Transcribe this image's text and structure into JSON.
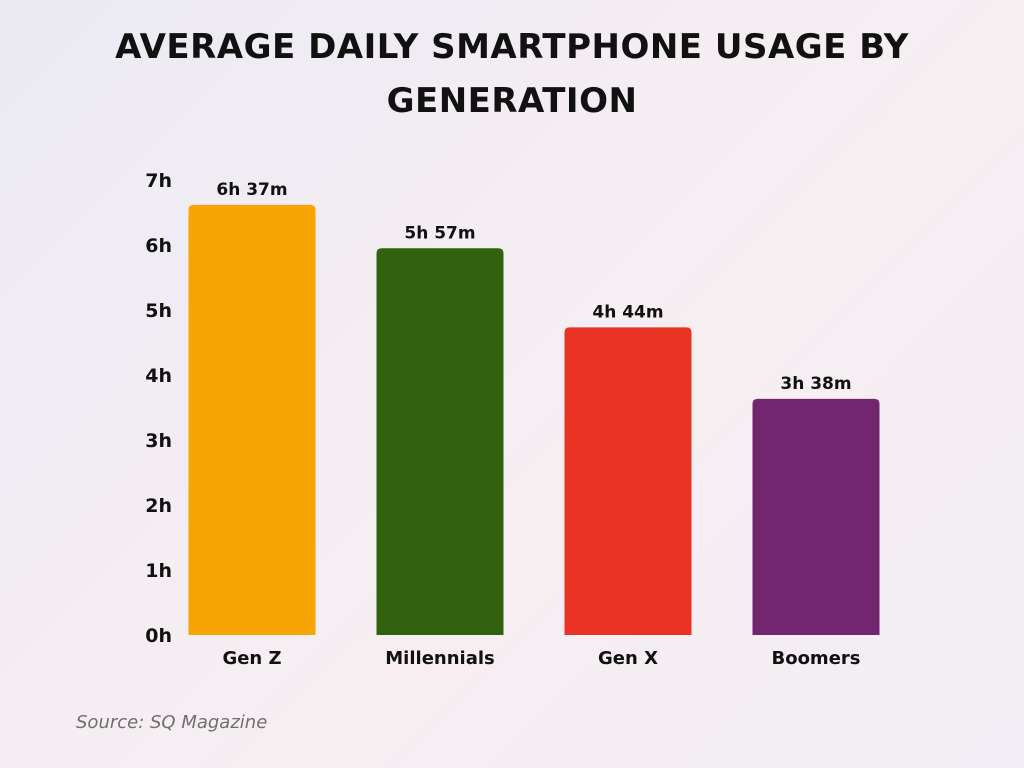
{
  "chart_data": {
    "type": "bar",
    "title": "AVERAGE DAILY SMARTPHONE USAGE BY GENERATION",
    "xlabel": "",
    "ylabel": "",
    "ylim": [
      0,
      7
    ],
    "yticks": [
      0,
      1,
      2,
      3,
      4,
      5,
      6,
      7
    ],
    "ytick_labels": [
      "0h",
      "1h",
      "2h",
      "3h",
      "4h",
      "5h",
      "6h",
      "7h"
    ],
    "categories": [
      "Gen Z",
      "Millennials",
      "Gen X",
      "Boomers"
    ],
    "values": [
      6.617,
      5.95,
      4.733,
      3.633
    ],
    "value_labels": [
      "6h 37m",
      "5h 57m",
      "4h 44m",
      "3h 38m"
    ],
    "colors": [
      "#f9a405",
      "#33620f",
      "#e83224",
      "#722670"
    ],
    "grid": false,
    "legend": "none"
  },
  "source": "Source: SQ Magazine"
}
